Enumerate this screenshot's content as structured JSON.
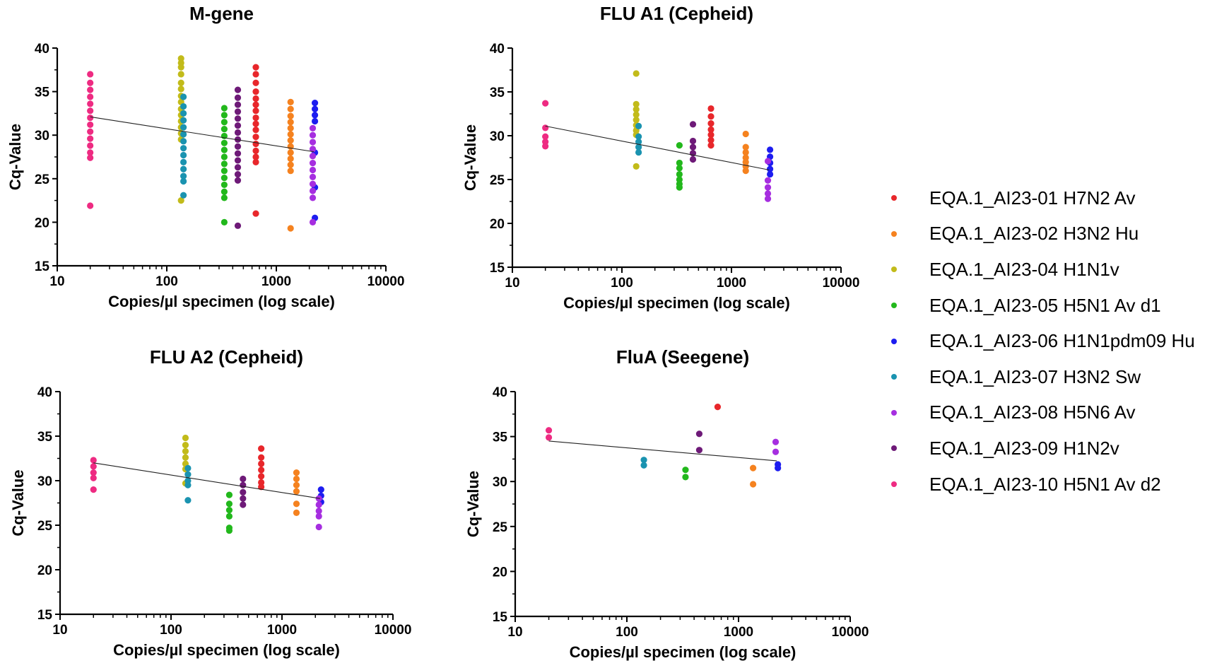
{
  "legend": [
    {
      "label": "EQA.1_AI23-01 H7N2 Av",
      "color": "#e8272b"
    },
    {
      "label": "EQA.1_AI23-02 H3N2 Hu",
      "color": "#f5821f"
    },
    {
      "label": "EQA.1_AI23-04 H1N1v",
      "color": "#c2bb1a"
    },
    {
      "label": "EQA.1_AI23-05 H5N1 Av d1",
      "color": "#22b81c"
    },
    {
      "label": "EQA.1_AI23-06 H1N1pdm09 Hu",
      "color": "#1d1df0"
    },
    {
      "label": "EQA.1_AI23-07 H3N2 Sw",
      "color": "#1a93b0"
    },
    {
      "label": "EQA.1_AI23-08 H5N6 Av",
      "color": "#a62ee0"
    },
    {
      "label": "EQA.1_AI23-09 H1N2v",
      "color": "#6e1a78"
    },
    {
      "label": "EQA.1_AI23-10 H5N1 Av d2",
      "color": "#ee2b82"
    }
  ],
  "chart_data": [
    {
      "type": "scatter",
      "title": "M-gene",
      "xlabel": "Copies/µl specimen (log scale)",
      "ylabel": "Cq-Value",
      "xscale": "log",
      "xlim": [
        10,
        10000
      ],
      "ylim": [
        15,
        40
      ],
      "xticks": [
        "10",
        "100",
        "1000",
        "10000"
      ],
      "yticks": [
        "15",
        "20",
        "25",
        "30",
        "35",
        "40"
      ],
      "trendline": [
        [
          20,
          32.1
        ],
        [
          2200,
          28.1
        ]
      ],
      "series": [
        {
          "name": "EQA.1_AI23-01 H7N2 Av",
          "x": 650,
          "y": [
            37.8,
            37.0,
            36.0,
            35.0,
            34.2,
            33.5,
            32.8,
            32.0,
            31.3,
            30.6,
            29.8,
            29.0,
            28.2,
            27.5,
            26.9,
            21.0
          ]
        },
        {
          "name": "EQA.1_AI23-02 H3N2 Hu",
          "x": 1350,
          "y": [
            33.8,
            33.0,
            32.2,
            31.5,
            30.8,
            30.1,
            29.4,
            28.7,
            28.0,
            27.3,
            26.6,
            25.9,
            19.3
          ]
        },
        {
          "name": "EQA.1_AI23-04 H1N1v",
          "x": 135,
          "y": [
            38.8,
            38.3,
            37.8,
            37.0,
            36.0,
            35.3,
            34.5,
            33.8,
            33.0,
            32.3,
            31.6,
            30.9,
            30.2,
            29.5,
            22.5
          ]
        },
        {
          "name": "EQA.1_AI23-05 H5N1 Av d1",
          "x": 335,
          "y": [
            33.1,
            32.3,
            31.5,
            30.7,
            29.9,
            29.1,
            28.3,
            27.5,
            26.7,
            25.9,
            25.1,
            24.3,
            23.5,
            22.8,
            20.0
          ]
        },
        {
          "name": "EQA.1_AI23-06 H1N1pdm09 Hu",
          "x": 2250,
          "y": [
            33.7,
            33.0,
            32.3,
            31.6,
            28.0,
            24.0,
            20.5
          ]
        },
        {
          "name": "EQA.1_AI23-07 H3N2 Sw",
          "x": 142,
          "y": [
            34.4,
            33.3,
            32.5,
            31.7,
            30.9,
            30.1,
            29.3,
            28.5,
            27.7,
            26.9,
            26.1,
            25.3,
            24.7,
            23.1
          ]
        },
        {
          "name": "EQA.1_AI23-08 H5N6 Av",
          "x": 2150,
          "y": [
            30.8,
            30.0,
            29.2,
            28.4,
            27.6,
            26.8,
            26.0,
            25.2,
            24.4,
            23.6,
            22.8,
            20.0
          ]
        },
        {
          "name": "EQA.1_AI23-09 H1N2v",
          "x": 445,
          "y": [
            35.2,
            34.3,
            33.5,
            32.7,
            31.9,
            31.1,
            30.3,
            29.5,
            28.7,
            27.9,
            27.1,
            26.3,
            25.5,
            24.8,
            19.6
          ]
        },
        {
          "name": "EQA.1_AI23-10 H5N1 Av d2",
          "x": 20,
          "y": [
            37.0,
            36.0,
            35.2,
            34.4,
            33.6,
            32.8,
            32.0,
            31.2,
            30.4,
            29.6,
            28.8,
            28.0,
            27.4,
            21.9
          ]
        }
      ]
    },
    {
      "type": "scatter",
      "title": "FLU A1 (Cepheid)",
      "xlabel": "Copies/µl specimen (log scale)",
      "ylabel": "Cq-Value",
      "xscale": "log",
      "xlim": [
        10,
        10000
      ],
      "ylim": [
        15,
        40
      ],
      "xticks": [
        "10",
        "100",
        "1000",
        "10000"
      ],
      "yticks": [
        "15",
        "20",
        "25",
        "30",
        "35",
        "40"
      ],
      "trendline": [
        [
          20,
          31.1
        ],
        [
          2200,
          26.1
        ]
      ],
      "series": [
        {
          "name": "EQA.1_AI23-01 H7N2 Av",
          "x": 650,
          "y": [
            33.1,
            32.2,
            31.4,
            30.7,
            30.1,
            29.5,
            28.9
          ]
        },
        {
          "name": "EQA.1_AI23-02 H3N2 Hu",
          "x": 1350,
          "y": [
            30.2,
            28.7,
            28.1,
            27.5,
            27.0,
            26.5,
            26.0
          ]
        },
        {
          "name": "EQA.1_AI23-04 H1N1v",
          "x": 135,
          "y": [
            37.1,
            33.6,
            33.0,
            32.4,
            31.8,
            31.2,
            30.6,
            30.1,
            26.5
          ]
        },
        {
          "name": "EQA.1_AI23-05 H5N1 Av d1",
          "x": 335,
          "y": [
            28.9,
            26.9,
            26.3,
            25.6,
            25.0,
            24.5,
            24.1
          ]
        },
        {
          "name": "EQA.1_AI23-06 H1N1pdm09 Hu",
          "x": 2250,
          "y": [
            28.4,
            27.6,
            26.9,
            26.2,
            25.6
          ]
        },
        {
          "name": "EQA.1_AI23-07 H3N2 Sw",
          "x": 142,
          "y": [
            31.1,
            29.9,
            29.3,
            28.7,
            28.1
          ]
        },
        {
          "name": "EQA.1_AI23-08 H5N6 Av",
          "x": 2150,
          "y": [
            27.1,
            24.9,
            24.1,
            23.4,
            22.8
          ]
        },
        {
          "name": "EQA.1_AI23-09 H1N2v",
          "x": 445,
          "y": [
            31.3,
            29.4,
            28.7,
            28.0,
            27.3
          ]
        },
        {
          "name": "EQA.1_AI23-10 H5N1 Av d2",
          "x": 20,
          "y": [
            33.7,
            30.9,
            29.9,
            29.3,
            28.8
          ]
        }
      ]
    },
    {
      "type": "scatter",
      "title": "FLU A2 (Cepheid)",
      "xlabel": "Copies/µl specimen (log scale)",
      "ylabel": "Cq-Value",
      "xscale": "log",
      "xlim": [
        10,
        10000
      ],
      "ylim": [
        15,
        40
      ],
      "xticks": [
        "10",
        "100",
        "1000",
        "10000"
      ],
      "yticks": [
        "15",
        "20",
        "25",
        "30",
        "35",
        "40"
      ],
      "trendline": [
        [
          20,
          32.0
        ],
        [
          2200,
          28.0
        ]
      ],
      "series": [
        {
          "name": "EQA.1_AI23-01 H7N2 Av",
          "x": 650,
          "y": [
            33.6,
            32.6,
            31.9,
            31.2,
            30.5,
            29.8,
            29.3
          ]
        },
        {
          "name": "EQA.1_AI23-02 H3N2 Hu",
          "x": 1350,
          "y": [
            30.9,
            30.2,
            29.5,
            28.8,
            27.4,
            26.4
          ]
        },
        {
          "name": "EQA.1_AI23-04 H1N1v",
          "x": 135,
          "y": [
            34.8,
            34.0,
            33.3,
            32.6,
            31.9,
            31.3,
            29.7
          ]
        },
        {
          "name": "EQA.1_AI23-05 H5N1 Av d1",
          "x": 335,
          "y": [
            28.4,
            27.4,
            26.7,
            26.0,
            24.7,
            24.4
          ]
        },
        {
          "name": "EQA.1_AI23-06 H1N1pdm09 Hu",
          "x": 2250,
          "y": [
            29.0,
            28.3,
            27.6
          ]
        },
        {
          "name": "EQA.1_AI23-07 H3N2 Sw",
          "x": 142,
          "y": [
            31.4,
            30.7,
            30.0,
            29.5,
            27.8
          ]
        },
        {
          "name": "EQA.1_AI23-08 H5N6 Av",
          "x": 2150,
          "y": [
            28.0,
            27.3,
            26.6,
            26.0,
            24.8
          ]
        },
        {
          "name": "EQA.1_AI23-09 H1N2v",
          "x": 445,
          "y": [
            30.2,
            29.5,
            28.7,
            28.0,
            27.3
          ]
        },
        {
          "name": "EQA.1_AI23-10 H5N1 Av d2",
          "x": 20,
          "y": [
            32.3,
            31.6,
            30.9,
            30.3,
            29.0
          ]
        }
      ]
    },
    {
      "type": "scatter",
      "title": "FluA (Seegene)",
      "xlabel": "Copies/µl specimen (log scale)",
      "ylabel": "Cq-Value",
      "xscale": "log",
      "xlim": [
        10,
        10000
      ],
      "ylim": [
        15,
        40
      ],
      "xticks": [
        "10",
        "100",
        "1000",
        "10000"
      ],
      "yticks": [
        "15",
        "20",
        "25",
        "30",
        "35",
        "40"
      ],
      "trendline": [
        [
          20,
          34.5
        ],
        [
          2200,
          32.3
        ]
      ],
      "series": [
        {
          "name": "EQA.1_AI23-01 H7N2 Av",
          "x": 650,
          "y": [
            38.3
          ]
        },
        {
          "name": "EQA.1_AI23-02 H3N2 Hu",
          "x": 1350,
          "y": [
            31.5,
            29.7
          ]
        },
        {
          "name": "EQA.1_AI23-04 H1N1v",
          "x": 135,
          "y": []
        },
        {
          "name": "EQA.1_AI23-05 H5N1 Av d1",
          "x": 335,
          "y": [
            31.3,
            30.5
          ]
        },
        {
          "name": "EQA.1_AI23-06 H1N1pdm09 Hu",
          "x": 2250,
          "y": [
            31.9,
            31.5
          ]
        },
        {
          "name": "EQA.1_AI23-07 H3N2 Sw",
          "x": 142,
          "y": [
            32.4,
            31.8
          ]
        },
        {
          "name": "EQA.1_AI23-08 H5N6 Av",
          "x": 2150,
          "y": [
            34.4,
            33.3
          ]
        },
        {
          "name": "EQA.1_AI23-09 H1N2v",
          "x": 445,
          "y": [
            35.3,
            33.5
          ]
        },
        {
          "name": "EQA.1_AI23-10 H5N1 Av d2",
          "x": 20,
          "y": [
            35.7,
            34.9
          ]
        }
      ]
    }
  ]
}
